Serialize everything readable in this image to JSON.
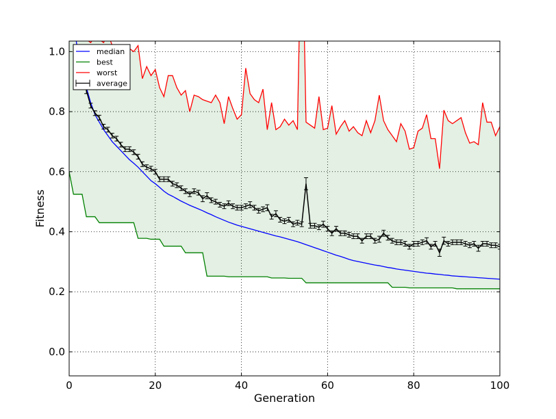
{
  "chart_data": {
    "type": "line",
    "title": "",
    "xlabel": "Generation",
    "ylabel": "Fitness",
    "xlim": [
      0,
      100
    ],
    "ylim": [
      -0.08,
      1.035
    ],
    "xticks": [
      0,
      20,
      40,
      60,
      80,
      100
    ],
    "yticks": [
      0.0,
      0.2,
      0.4,
      0.6,
      0.8,
      1.0
    ],
    "xtick_labels": [
      "0",
      "20",
      "40",
      "60",
      "80",
      "100"
    ],
    "ytick_labels": [
      "0.0",
      "0.2",
      "0.4",
      "0.6",
      "0.8",
      "1.0"
    ],
    "grid": true,
    "legend_position": "top-left",
    "fill_between": {
      "lower": "best",
      "upper": "worst",
      "color": "#e3f0e3"
    },
    "series": [
      {
        "name": "median",
        "color": "#0000ff",
        "x": [
          1,
          2,
          3,
          4,
          5,
          6,
          7,
          8,
          9,
          10,
          11,
          12,
          13,
          14,
          15,
          16,
          17,
          18,
          19,
          20,
          21,
          22,
          23,
          24,
          25,
          26,
          27,
          28,
          29,
          30,
          31,
          32,
          33,
          34,
          35,
          36,
          37,
          38,
          39,
          40,
          41,
          42,
          43,
          44,
          45,
          46,
          47,
          48,
          49,
          50,
          51,
          52,
          53,
          54,
          55,
          56,
          57,
          58,
          59,
          60,
          61,
          62,
          63,
          64,
          65,
          66,
          67,
          68,
          69,
          70,
          71,
          72,
          73,
          74,
          75,
          76,
          77,
          78,
          79,
          80,
          81,
          82,
          83,
          84,
          85,
          86,
          87,
          88,
          89,
          90,
          91,
          92,
          93,
          94,
          95,
          96,
          97,
          98,
          99,
          100
        ],
        "y": [
          1.1,
          1.0,
          0.94,
          0.88,
          0.83,
          0.79,
          0.765,
          0.74,
          0.72,
          0.7,
          0.685,
          0.67,
          0.655,
          0.64,
          0.628,
          0.615,
          0.6,
          0.585,
          0.57,
          0.56,
          0.548,
          0.535,
          0.525,
          0.518,
          0.51,
          0.502,
          0.495,
          0.488,
          0.482,
          0.476,
          0.47,
          0.463,
          0.457,
          0.45,
          0.444,
          0.438,
          0.432,
          0.427,
          0.422,
          0.418,
          0.414,
          0.41,
          0.406,
          0.402,
          0.398,
          0.394,
          0.39,
          0.386,
          0.383,
          0.379,
          0.375,
          0.371,
          0.367,
          0.362,
          0.357,
          0.352,
          0.347,
          0.342,
          0.337,
          0.332,
          0.327,
          0.322,
          0.318,
          0.313,
          0.308,
          0.304,
          0.301,
          0.298,
          0.295,
          0.292,
          0.289,
          0.287,
          0.284,
          0.281,
          0.279,
          0.276,
          0.274,
          0.272,
          0.27,
          0.268,
          0.266,
          0.264,
          0.262,
          0.261,
          0.259,
          0.258,
          0.256,
          0.255,
          0.253,
          0.252,
          0.251,
          0.25,
          0.249,
          0.248,
          0.247,
          0.246,
          0.245,
          0.244,
          0.243,
          0.242
        ]
      },
      {
        "name": "best",
        "color": "#008000",
        "x": [
          0,
          1,
          2,
          3,
          4,
          5,
          6,
          7,
          8,
          9,
          10,
          11,
          12,
          13,
          14,
          15,
          16,
          17,
          18,
          19,
          20,
          21,
          22,
          23,
          24,
          25,
          26,
          27,
          28,
          29,
          30,
          31,
          32,
          33,
          34,
          35,
          36,
          37,
          38,
          39,
          40,
          41,
          42,
          43,
          44,
          45,
          46,
          47,
          48,
          49,
          50,
          51,
          52,
          53,
          54,
          55,
          56,
          57,
          58,
          59,
          60,
          61,
          62,
          63,
          64,
          65,
          66,
          67,
          68,
          69,
          70,
          71,
          72,
          73,
          74,
          75,
          76,
          77,
          78,
          79,
          80,
          81,
          82,
          83,
          84,
          85,
          86,
          87,
          88,
          89,
          90,
          91,
          92,
          93,
          94,
          95,
          96,
          97,
          98,
          99,
          100
        ],
        "y": [
          0.6,
          0.525,
          0.525,
          0.525,
          0.45,
          0.45,
          0.45,
          0.43,
          0.43,
          0.43,
          0.43,
          0.43,
          0.43,
          0.43,
          0.43,
          0.43,
          0.378,
          0.378,
          0.378,
          0.375,
          0.375,
          0.375,
          0.352,
          0.352,
          0.352,
          0.352,
          0.352,
          0.33,
          0.33,
          0.33,
          0.33,
          0.33,
          0.252,
          0.252,
          0.252,
          0.252,
          0.252,
          0.25,
          0.25,
          0.25,
          0.25,
          0.25,
          0.25,
          0.25,
          0.25,
          0.25,
          0.25,
          0.246,
          0.246,
          0.246,
          0.246,
          0.245,
          0.245,
          0.245,
          0.245,
          0.23,
          0.23,
          0.23,
          0.23,
          0.23,
          0.23,
          0.23,
          0.23,
          0.23,
          0.23,
          0.23,
          0.23,
          0.23,
          0.23,
          0.23,
          0.23,
          0.23,
          0.23,
          0.23,
          0.23,
          0.215,
          0.215,
          0.215,
          0.215,
          0.213,
          0.213,
          0.213,
          0.213,
          0.213,
          0.213,
          0.213,
          0.213,
          0.213,
          0.213,
          0.213,
          0.21,
          0.21,
          0.21,
          0.21,
          0.21,
          0.21,
          0.21,
          0.21,
          0.21,
          0.21,
          0.21
        ]
      },
      {
        "name": "worst",
        "color": "#ff0000",
        "x": [
          2,
          3,
          4,
          5,
          6,
          7,
          8,
          9,
          10,
          11,
          12,
          13,
          14,
          15,
          16,
          17,
          18,
          19,
          20,
          21,
          22,
          23,
          24,
          25,
          26,
          27,
          28,
          29,
          30,
          31,
          32,
          33,
          34,
          35,
          36,
          37,
          38,
          39,
          40,
          41,
          42,
          43,
          44,
          45,
          46,
          47,
          48,
          49,
          50,
          51,
          52,
          53,
          54,
          55,
          56,
          57,
          58,
          59,
          60,
          61,
          62,
          63,
          64,
          65,
          66,
          67,
          68,
          69,
          70,
          71,
          72,
          73,
          74,
          75,
          76,
          77,
          78,
          79,
          80,
          81,
          82,
          83,
          84,
          85,
          86,
          87,
          88,
          89,
          90,
          91,
          92,
          93,
          94,
          95,
          96,
          97,
          98,
          99,
          100
        ],
        "y": [
          1.06,
          1.08,
          1.04,
          1.03,
          1.05,
          1.04,
          1.03,
          1.06,
          1.02,
          1.01,
          1.02,
          1.02,
          1.01,
          1.0,
          1.02,
          0.91,
          0.95,
          0.92,
          0.94,
          0.88,
          0.85,
          0.92,
          0.92,
          0.88,
          0.855,
          0.87,
          0.8,
          0.855,
          0.85,
          0.84,
          0.835,
          0.83,
          0.855,
          0.83,
          0.76,
          0.85,
          0.81,
          0.775,
          0.79,
          0.945,
          0.86,
          0.84,
          0.83,
          0.875,
          0.74,
          0.83,
          0.74,
          0.75,
          0.775,
          0.755,
          0.77,
          0.74,
          1.5,
          0.765,
          0.755,
          0.745,
          0.85,
          0.74,
          0.745,
          0.82,
          0.725,
          0.75,
          0.77,
          0.735,
          0.75,
          0.73,
          0.72,
          0.77,
          0.73,
          0.77,
          0.855,
          0.77,
          0.74,
          0.72,
          0.7,
          0.76,
          0.735,
          0.675,
          0.68,
          0.735,
          0.745,
          0.79,
          0.71,
          0.71,
          0.61,
          0.805,
          0.77,
          0.76,
          0.77,
          0.78,
          0.73,
          0.695,
          0.7,
          0.69,
          0.83,
          0.765,
          0.765,
          0.72,
          0.75
        ]
      },
      {
        "name": "average",
        "color": "#000000",
        "error_bars": true,
        "x": [
          3,
          4,
          5,
          6,
          7,
          8,
          9,
          10,
          11,
          12,
          13,
          14,
          15,
          16,
          17,
          18,
          19,
          20,
          21,
          22,
          23,
          24,
          25,
          26,
          27,
          28,
          29,
          30,
          31,
          32,
          33,
          34,
          35,
          36,
          37,
          38,
          39,
          40,
          41,
          42,
          43,
          44,
          45,
          46,
          47,
          48,
          49,
          50,
          51,
          52,
          53,
          54,
          55,
          56,
          57,
          58,
          59,
          60,
          61,
          62,
          63,
          64,
          65,
          66,
          67,
          68,
          69,
          70,
          71,
          72,
          73,
          74,
          75,
          76,
          77,
          78,
          79,
          80,
          81,
          82,
          83,
          84,
          85,
          86,
          87,
          88,
          89,
          90,
          91,
          92,
          93,
          94,
          95,
          96,
          97,
          98,
          99,
          100
        ],
        "y": [
          0.93,
          0.87,
          0.82,
          0.795,
          0.78,
          0.75,
          0.74,
          0.72,
          0.71,
          0.69,
          0.675,
          0.675,
          0.665,
          0.65,
          0.625,
          0.615,
          0.61,
          0.6,
          0.575,
          0.575,
          0.575,
          0.56,
          0.555,
          0.545,
          0.535,
          0.525,
          0.535,
          0.53,
          0.51,
          0.52,
          0.505,
          0.5,
          0.49,
          0.485,
          0.495,
          0.485,
          0.48,
          0.48,
          0.485,
          0.49,
          0.48,
          0.47,
          0.475,
          0.48,
          0.45,
          0.46,
          0.44,
          0.435,
          0.44,
          0.425,
          0.43,
          0.425,
          0.56,
          0.42,
          0.42,
          0.415,
          0.425,
          0.41,
          0.395,
          0.41,
          0.395,
          0.395,
          0.39,
          0.385,
          0.385,
          0.37,
          0.385,
          0.385,
          0.37,
          0.375,
          0.395,
          0.38,
          0.37,
          0.365,
          0.365,
          0.36,
          0.35,
          0.36,
          0.36,
          0.365,
          0.37,
          0.35,
          0.36,
          0.33,
          0.37,
          0.36,
          0.365,
          0.365,
          0.365,
          0.36,
          0.355,
          0.36,
          0.345,
          0.36,
          0.36,
          0.355,
          0.355,
          0.35
        ],
        "err": [
          0.01,
          0.01,
          0.008,
          0.008,
          0.008,
          0.008,
          0.008,
          0.008,
          0.008,
          0.008,
          0.008,
          0.008,
          0.008,
          0.008,
          0.008,
          0.008,
          0.008,
          0.008,
          0.008,
          0.008,
          0.008,
          0.008,
          0.008,
          0.008,
          0.008,
          0.008,
          0.008,
          0.008,
          0.01,
          0.01,
          0.008,
          0.008,
          0.008,
          0.008,
          0.008,
          0.008,
          0.008,
          0.008,
          0.008,
          0.01,
          0.008,
          0.008,
          0.008,
          0.01,
          0.008,
          0.01,
          0.008,
          0.008,
          0.008,
          0.008,
          0.008,
          0.008,
          0.02,
          0.008,
          0.008,
          0.008,
          0.01,
          0.008,
          0.008,
          0.008,
          0.008,
          0.008,
          0.008,
          0.008,
          0.008,
          0.008,
          0.008,
          0.008,
          0.008,
          0.01,
          0.01,
          0.008,
          0.008,
          0.008,
          0.008,
          0.008,
          0.008,
          0.008,
          0.008,
          0.008,
          0.01,
          0.008,
          0.008,
          0.012,
          0.012,
          0.008,
          0.008,
          0.008,
          0.008,
          0.008,
          0.008,
          0.008,
          0.01,
          0.008,
          0.008,
          0.008,
          0.008,
          0.008
        ]
      }
    ]
  }
}
